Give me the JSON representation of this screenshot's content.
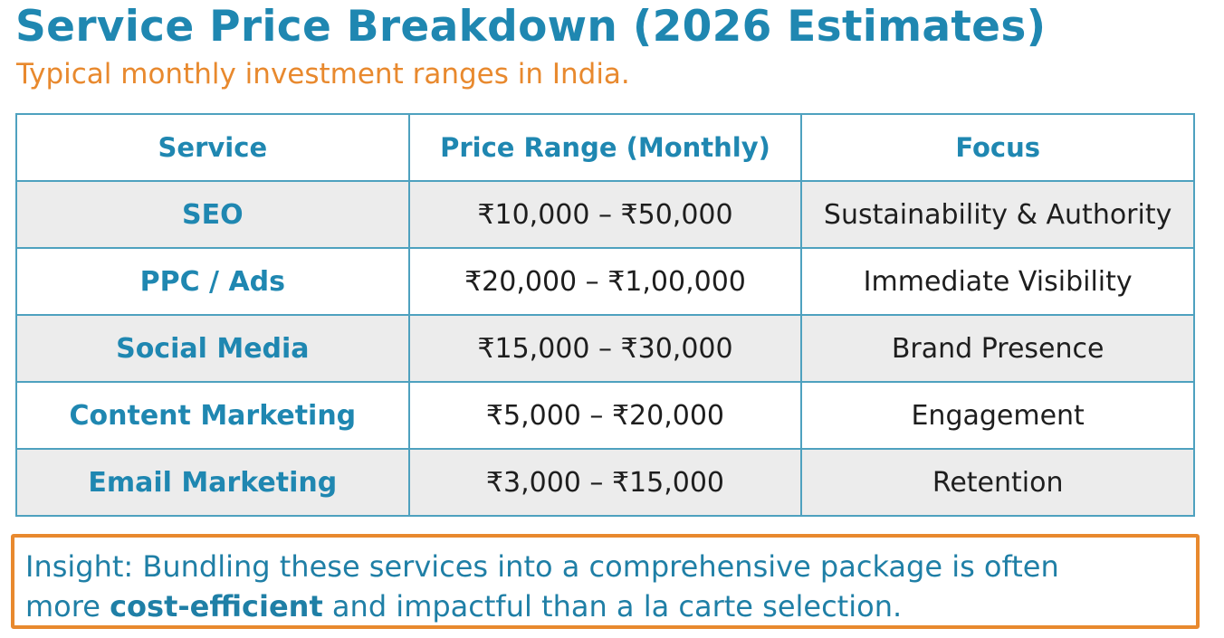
{
  "title": "Service Price Breakdown (2026 Estimates)",
  "subtitle": "Typical monthly investment ranges in India.",
  "table": {
    "headers": [
      "Service",
      "Price Range (Monthly)",
      "Focus"
    ],
    "rows": [
      {
        "service": "SEO",
        "price": "₹10,000 – ₹50,000",
        "focus": "Sustainability & Authority"
      },
      {
        "service": "PPC / Ads",
        "price": "₹20,000 – ₹1,00,000",
        "focus": "Immediate Visibility"
      },
      {
        "service": "Social Media",
        "price": "₹15,000 – ₹30,000",
        "focus": "Brand Presence"
      },
      {
        "service": "Content Marketing",
        "price": "₹5,000 – ₹20,000",
        "focus": "Engagement"
      },
      {
        "service": "Email Marketing",
        "price": "₹3,000 – ₹15,000",
        "focus": "Retention"
      }
    ]
  },
  "insight": {
    "line1": "Insight: Bundling these services into a comprehensive package is often",
    "line2_pre": "more ",
    "line2_bold": "cost-efficient",
    "line2_post": " and impactful than a la carte selection."
  },
  "colors": {
    "accent": "#1f87b1",
    "orange": "#e8892e",
    "row_alt": "#ececec"
  }
}
